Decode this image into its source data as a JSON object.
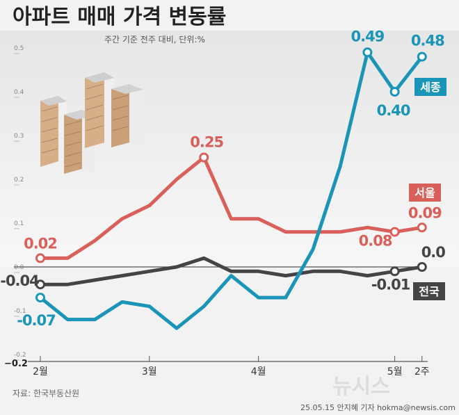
{
  "title": "아파트 매매 가격 변동률",
  "subtitle": "주간 기준 전주 대비, 단위:%",
  "source": "자료:  한국부동산원",
  "credit": "25.05.15 안지혜 기자 hokma@newsis.com",
  "watermark": "뉴시스",
  "colors": {
    "sejong": "#1a95b8",
    "seoul": "#d9605a",
    "national": "#444444",
    "background": "#f2f2f2"
  },
  "chart_data": {
    "type": "line",
    "x": [
      0,
      1,
      2,
      3,
      4,
      5,
      6,
      7,
      8,
      9,
      10,
      11,
      12,
      13,
      14
    ],
    "ylim": [
      -0.2,
      0.5
    ],
    "yticks": [
      {
        "value": 0.5,
        "label": "0.5"
      },
      {
        "value": 0.4,
        "label": "0.4"
      },
      {
        "value": 0.3,
        "label": "0.3"
      },
      {
        "value": 0.2,
        "label": "0.2"
      },
      {
        "value": 0.1,
        "label": "0.1"
      },
      {
        "value": 0.0,
        "label": "0.0"
      },
      {
        "value": -0.1,
        "label": "-0.1"
      },
      {
        "value": -0.2,
        "label": "-0.2"
      }
    ],
    "ymin_label": "−0.2",
    "xticks": [
      {
        "x": 0,
        "label": "2월"
      },
      {
        "x": 4,
        "label": "3월"
      },
      {
        "x": 8,
        "label": "4월"
      },
      {
        "x": 13,
        "label": "5월"
      },
      {
        "x": 14,
        "label": "2주"
      }
    ],
    "grid": false,
    "series": [
      {
        "key": "sejong",
        "name": "세종",
        "values": [
          -0.07,
          -0.12,
          -0.12,
          -0.08,
          -0.09,
          -0.14,
          -0.09,
          -0.02,
          -0.07,
          -0.07,
          0.04,
          0.23,
          0.49,
          0.4,
          0.48
        ],
        "markers": [
          0,
          12,
          13,
          14
        ],
        "labels": [
          {
            "i": 0,
            "text": "-0.07",
            "dx": -6,
            "dy": 40,
            "anchor": "middle"
          },
          {
            "i": 12,
            "text": "0.49",
            "dx": 0,
            "dy": -16,
            "anchor": "middle"
          },
          {
            "i": 13,
            "text": "0.40",
            "dx": -2,
            "dy": 34,
            "anchor": "middle"
          },
          {
            "i": 14,
            "text": "0.48",
            "dx": 8,
            "dy": -16,
            "anchor": "middle"
          }
        ]
      },
      {
        "key": "seoul",
        "name": "서울",
        "values": [
          0.02,
          0.02,
          0.06,
          0.11,
          0.14,
          0.2,
          0.25,
          0.11,
          0.11,
          0.08,
          0.08,
          0.08,
          0.09,
          0.08,
          0.09
        ],
        "markers": [
          0,
          6,
          13,
          14
        ],
        "labels": [
          {
            "i": 0,
            "text": "0.02",
            "dx": 0,
            "dy": -14,
            "anchor": "middle"
          },
          {
            "i": 6,
            "text": "0.25",
            "dx": 4,
            "dy": -15,
            "anchor": "middle"
          },
          {
            "i": 13,
            "text": "0.08",
            "dx": -28,
            "dy": 20,
            "anchor": "middle"
          },
          {
            "i": 14,
            "text": "0.09",
            "dx": 4,
            "dy": -14,
            "anchor": "middle"
          }
        ]
      },
      {
        "key": "national",
        "name": "전국",
        "values": [
          -0.04,
          -0.04,
          -0.03,
          -0.02,
          -0.01,
          0.0,
          0.02,
          -0.01,
          -0.01,
          -0.02,
          -0.01,
          -0.01,
          -0.02,
          -0.01,
          0.0
        ],
        "markers": [
          0,
          13,
          14
        ],
        "labels": [
          {
            "i": 0,
            "text": "-0.04",
            "dx": -30,
            "dy": 2,
            "anchor": "middle"
          },
          {
            "i": 13,
            "text": "-0.01",
            "dx": -6,
            "dy": 26,
            "anchor": "middle"
          },
          {
            "i": 14,
            "text": "0.0",
            "dx": 16,
            "dy": -14,
            "anchor": "middle"
          }
        ]
      }
    ]
  }
}
